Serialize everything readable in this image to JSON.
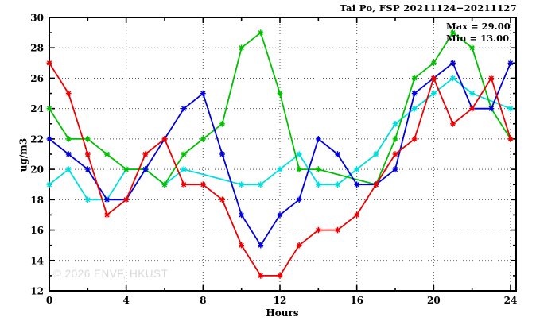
{
  "title": "Tai Po, FSP 20211124−20211127",
  "annotation": {
    "max_label": "Max = 29.00",
    "min_label": "Min = 13.00"
  },
  "watermark": "© 2026 ENVF, HKUST",
  "colors": {
    "border": "#000000",
    "grid": "#555555",
    "text": "#000000",
    "watermark": "#d9d9d9",
    "series_red": "#ee0000",
    "series_green": "#00c000",
    "series_blue": "#0000dd",
    "series_cyan": "#00dddd"
  },
  "chart_data": {
    "type": "line",
    "title": "Tai Po, FSP 20211124−20211127",
    "xlabel": "Hours",
    "ylabel": "ug/m3",
    "xlim": [
      0,
      24.3
    ],
    "ylim": [
      12,
      30
    ],
    "grid": "dotted",
    "legend_position": "none",
    "marker": "asterisk",
    "x": [
      0,
      1,
      2,
      3,
      4,
      5,
      6,
      7,
      8,
      9,
      10,
      11,
      12,
      13,
      14,
      15,
      16,
      17,
      18,
      19,
      20,
      21,
      22,
      23,
      24
    ],
    "x_major_ticks": [
      0,
      4,
      8,
      12,
      16,
      20,
      24
    ],
    "x_tick_labels": [
      "0",
      "4",
      "8",
      "12",
      "16",
      "20",
      "24"
    ],
    "x_minor_ticks": [
      2,
      6,
      10,
      14,
      18,
      22
    ],
    "y_major_ticks": [
      12,
      14,
      16,
      18,
      20,
      22,
      24,
      26,
      28,
      30
    ],
    "y_tick_labels": [
      "12",
      "14",
      "16",
      "18",
      "20",
      "22",
      "24",
      "26",
      "28",
      "30"
    ],
    "x_gridlines": [
      4,
      8,
      12,
      16,
      20,
      24
    ],
    "y_gridlines": [
      14,
      16,
      18,
      20,
      22,
      24,
      26,
      28
    ],
    "annotations": [
      "Max = 29.00",
      "Min = 13.00"
    ],
    "series": [
      {
        "name": "cyan-line",
        "color": "#00dddd",
        "values": [
          19,
          20,
          18,
          18,
          20,
          20,
          19,
          20,
          null,
          null,
          19,
          19,
          20,
          21,
          19,
          19,
          20,
          21,
          23,
          24,
          25,
          26,
          25,
          null,
          24
        ]
      },
      {
        "name": "green-line",
        "color": "#00c000",
        "values": [
          24,
          22,
          22,
          21,
          20,
          20,
          19,
          21,
          22,
          23,
          28,
          29,
          25,
          20,
          20,
          null,
          null,
          19,
          22,
          26,
          27,
          29,
          28,
          24,
          22
        ]
      },
      {
        "name": "blue-line",
        "color": "#0000dd",
        "values": [
          22,
          21,
          20,
          18,
          18,
          20,
          22,
          24,
          25,
          21,
          17,
          15,
          17,
          18,
          22,
          21,
          19,
          19,
          20,
          25,
          26,
          27,
          24,
          24,
          27
        ]
      },
      {
        "name": "red-line",
        "color": "#ee0000",
        "values": [
          27,
          25,
          21,
          17,
          18,
          21,
          22,
          19,
          19,
          18,
          15,
          13,
          13,
          15,
          16,
          16,
          17,
          19,
          21,
          22,
          26,
          23,
          24,
          26,
          22
        ]
      }
    ]
  }
}
